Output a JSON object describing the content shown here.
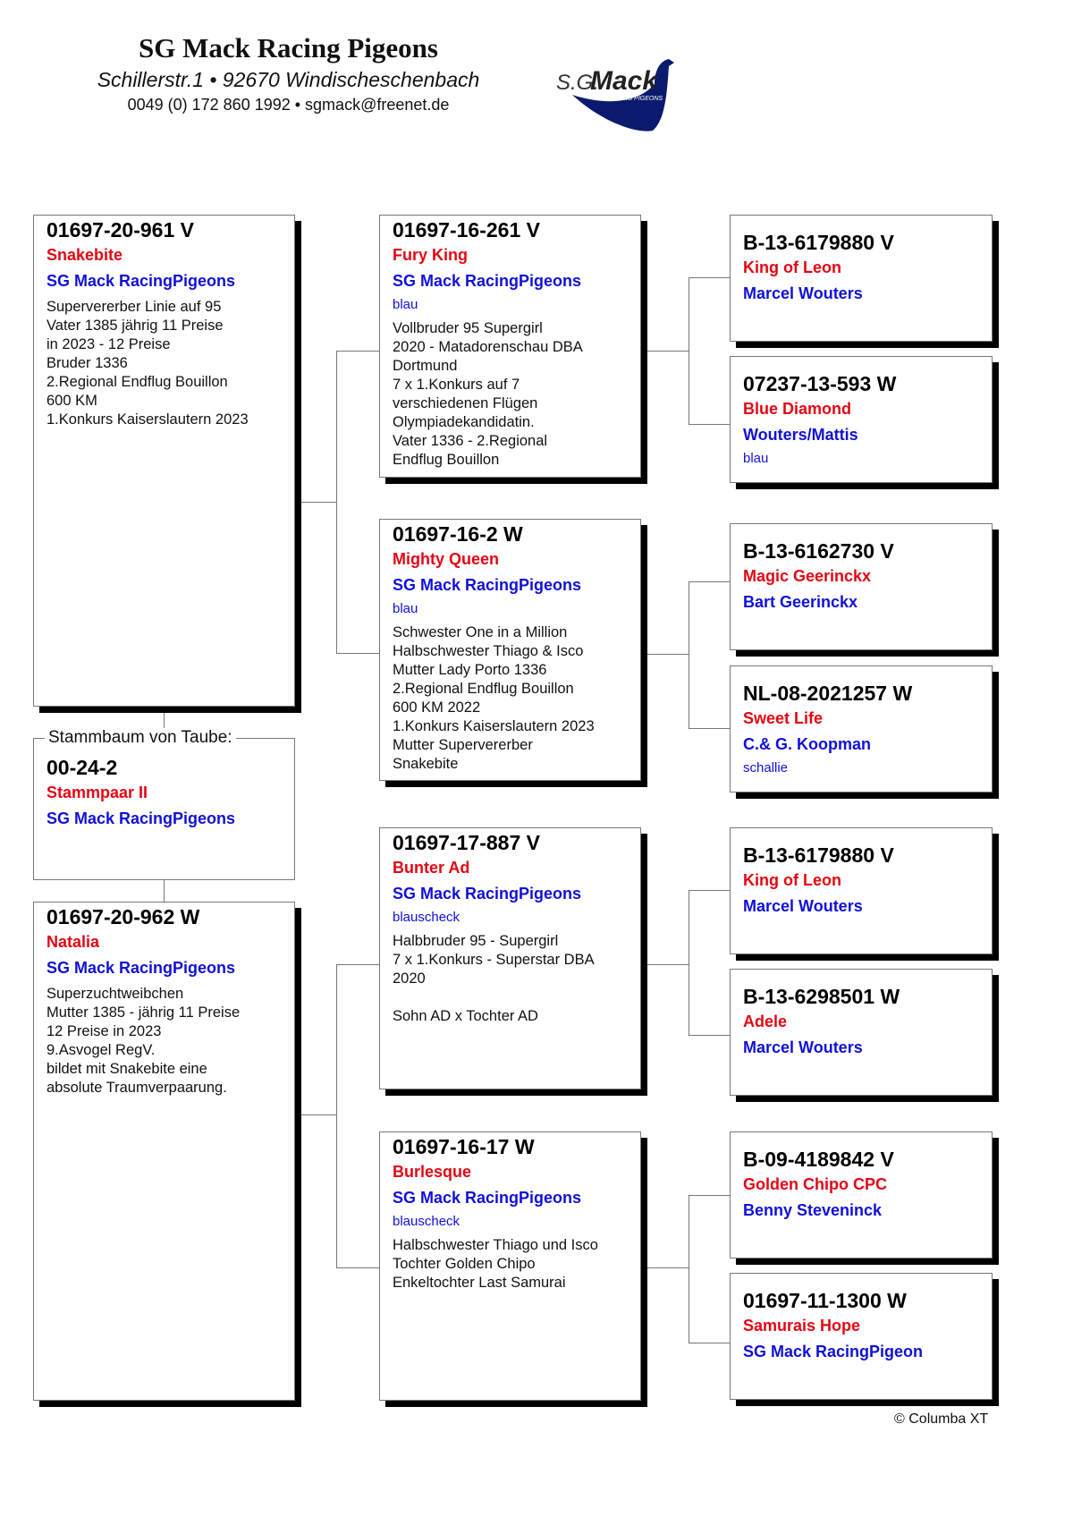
{
  "header": {
    "title": "SG Mack Racing Pigeons",
    "address": "Schillerstr.1 • 92670 Windischeschenbach",
    "contact": "0049 (0) 172 860 1992 • sgmack@freenet.de",
    "logo_text": "S.G.Mack RACING PIGEONS",
    "logo_color": "#0b1a6e"
  },
  "subject": {
    "legend": "Stammbaum von Taube:",
    "ring": "00-24-2",
    "name": "Stammpaar II",
    "owner": "SG Mack RacingPigeons"
  },
  "parents": [
    {
      "ring": "01697-20-961 V",
      "name": "Snakebite",
      "owner": "SG Mack RacingPigeons",
      "color": "",
      "notes": [
        "Supervererber Linie auf 95",
        "Vater 1385 jährig 11 Preise",
        "in 2023 - 12 Preise",
        "Bruder 1336",
        "2.Regional Endflug Bouillon",
        "600 KM",
        "1.Konkurs Kaiserslautern 2023"
      ]
    },
    {
      "ring": "01697-20-962 W",
      "name": "Natalia",
      "owner": "SG Mack RacingPigeons",
      "color": "",
      "notes": [
        "Superzuchtweibchen",
        "Mutter 1385 - jährig 11 Preise",
        "12 Preise in 2023",
        "9.Asvogel RegV.",
        "bildet mit Snakebite eine",
        "absolute Traumverpaarung."
      ]
    }
  ],
  "grandparents": [
    {
      "ring": "01697-16-261 V",
      "name": "Fury King",
      "owner": "SG Mack RacingPigeons",
      "color": "blau",
      "notes": [
        "Vollbruder 95 Supergirl",
        "2020 - Matadorenschau DBA",
        "Dortmund",
        "7 x 1.Konkurs auf 7",
        "verschiedenen Flügen",
        "Olympiadekandidatin.",
        "Vater 1336 - 2.Regional",
        "Endflug Bouillon"
      ]
    },
    {
      "ring": "01697-16-2 W",
      "name": "Mighty Queen",
      "owner": "SG Mack RacingPigeons",
      "color": "blau",
      "notes": [
        "Schwester One in a Million",
        "Halbschwester Thiago & Isco",
        "Mutter Lady Porto 1336",
        "2.Regional Endflug Bouillon",
        "600 KM 2022",
        "1.Konkurs Kaiserslautern 2023",
        "Mutter Supervererber",
        "Snakebite"
      ]
    },
    {
      "ring": "01697-17-887 V",
      "name": "Bunter Ad",
      "owner": "SG Mack RacingPigeons",
      "color": "blauscheck",
      "notes": [
        "Halbbruder 95 - Supergirl",
        "7 x 1.Konkurs - Superstar DBA",
        "2020",
        "",
        "Sohn AD x Tochter AD"
      ]
    },
    {
      "ring": "01697-16-17 W",
      "name": "Burlesque",
      "owner": "SG Mack RacingPigeons",
      "color": "blauscheck",
      "notes": [
        "Halbschwester Thiago und Isco",
        "Tochter Golden Chipo",
        "Enkeltochter Last Samurai"
      ]
    }
  ],
  "great_grandparents": [
    {
      "ring": "B-13-6179880 V",
      "name": "King of Leon",
      "owner": "Marcel Wouters",
      "color": ""
    },
    {
      "ring": "07237-13-593 W",
      "name": "Blue Diamond",
      "owner": "Wouters/Mattis",
      "color": "blau"
    },
    {
      "ring": "B-13-6162730 V",
      "name": "Magic Geerinckx",
      "owner": "Bart Geerinckx",
      "color": ""
    },
    {
      "ring": "NL-08-2021257 W",
      "name": "Sweet Life",
      "owner": "C.& G. Koopman",
      "color": "schallie"
    },
    {
      "ring": "B-13-6179880 V",
      "name": "King of Leon",
      "owner": "Marcel Wouters",
      "color": ""
    },
    {
      "ring": "B-13-6298501 W",
      "name": "Adele",
      "owner": "Marcel Wouters",
      "color": ""
    },
    {
      "ring": "B-09-4189842 V",
      "name": "Golden Chipo CPC",
      "owner": "Benny Steveninck",
      "color": ""
    },
    {
      "ring": "01697-11-1300 W",
      "name": "Samurais Hope",
      "owner": "SG Mack RacingPigeon",
      "color": ""
    }
  ],
  "footer": {
    "copyright": "© Columba XT"
  }
}
